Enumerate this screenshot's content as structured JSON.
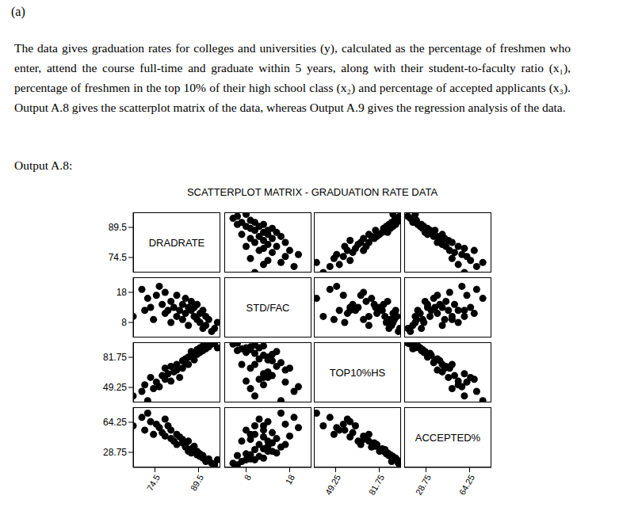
{
  "part": "(a)",
  "paragraph": "The data gives graduation rates for colleges and universities (y), calculated as the percentage of freshmen who enter, attend the course full-time and graduate within 5 years, along with their student-to-faculty ratio (x₁), percentage of freshmen in the top 10% of their high school class (x₂) and percentage of accepted applicants (x₃). Output A.8 gives the scatterplot matrix of the data, whereas Output A.9 gives the regression analysis of the data.",
  "output_label": "Output A.8:",
  "chart_data": {
    "type": "scatter_matrix",
    "title": "SCATTERPLOT MATRIX - GRADUATION RATE DATA",
    "color": "#000000",
    "marker": "circle",
    "variables": [
      {
        "name": "DRADRATE",
        "lim": [
          67,
          97
        ],
        "ticks": [
          74.5,
          89.5
        ],
        "values": [
          67,
          70,
          71,
          72,
          73,
          74,
          75,
          76,
          77,
          78,
          78,
          79,
          80,
          80,
          81,
          82,
          82,
          83,
          84,
          84,
          85,
          85,
          86,
          86,
          87,
          87,
          88,
          88,
          89,
          89,
          90,
          90,
          91,
          91,
          92,
          92,
          93,
          94,
          95,
          96
        ]
      },
      {
        "name": "STD/FAC",
        "lim": [
          3,
          23
        ],
        "ticks": [
          8,
          18
        ],
        "values": [
          10,
          19,
          12,
          16,
          13,
          9,
          17,
          20,
          14,
          11,
          18,
          12,
          15,
          8,
          13,
          10,
          17,
          12,
          14,
          9,
          16,
          11,
          13,
          7,
          12,
          15,
          10,
          13,
          9,
          14,
          11,
          8,
          12,
          6,
          10,
          7,
          9,
          5,
          6,
          8
        ]
      },
      {
        "name": "TOP10%HS",
        "lim": [
          33,
          98
        ],
        "ticks": [
          49.25,
          81.75
        ],
        "values": [
          40,
          45,
          52,
          35,
          60,
          48,
          55,
          50,
          62,
          58,
          70,
          64,
          72,
          56,
          66,
          74,
          68,
          60,
          78,
          70,
          76,
          80,
          82,
          74,
          84,
          88,
          86,
          79,
          90,
          85,
          92,
          87,
          94,
          89,
          95,
          91,
          93,
          96,
          97,
          92
        ]
      },
      {
        "name": "ACCEPTED%",
        "lim": [
          11,
          82
        ],
        "ticks": [
          28.75,
          64.25
        ],
        "values": [
          60,
          70,
          55,
          75,
          65,
          50,
          62,
          58,
          52,
          68,
          48,
          60,
          45,
          55,
          42,
          50,
          38,
          47,
          40,
          44,
          35,
          38,
          30,
          42,
          33,
          28,
          32,
          36,
          26,
          30,
          24,
          27,
          22,
          25,
          20,
          18,
          21,
          16,
          14,
          20
        ]
      }
    ]
  }
}
